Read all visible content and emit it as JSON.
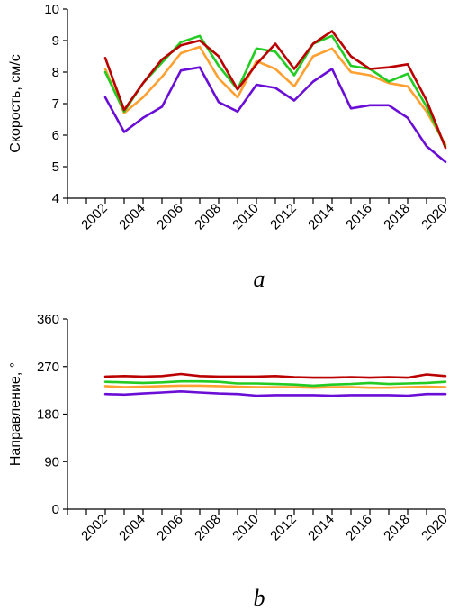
{
  "chart_data": [
    {
      "type": "line",
      "panel_label": "a",
      "ylabel": "Скорость, см/с",
      "ylim": [
        4,
        10
      ],
      "yticks": [
        "4",
        "5",
        "6",
        "7",
        "8",
        "9",
        "10"
      ],
      "xlim": [
        2000,
        2020
      ],
      "xticks": [
        "2002",
        "2004",
        "2006",
        "2008",
        "2010",
        "2012",
        "2014",
        "2016",
        "2018",
        "2020"
      ],
      "x": [
        2002,
        2003,
        2004,
        2005,
        2006,
        2007,
        2008,
        2009,
        2010,
        2011,
        2012,
        2013,
        2014,
        2015,
        2016,
        2017,
        2018,
        2019,
        2020
      ],
      "series": [
        {
          "color": "#6a0dd6",
          "values": [
            7.2,
            6.1,
            6.55,
            6.9,
            8.05,
            8.15,
            7.05,
            6.75,
            7.6,
            7.5,
            7.1,
            7.7,
            8.1,
            6.85,
            6.95,
            6.95,
            6.55,
            5.65,
            5.15
          ]
        },
        {
          "color": "#ffa030",
          "values": [
            8.1,
            6.7,
            7.2,
            7.85,
            8.6,
            8.8,
            7.8,
            7.2,
            8.35,
            8.1,
            7.55,
            8.5,
            8.75,
            8.0,
            7.9,
            7.65,
            7.55,
            6.75,
            5.7
          ]
        },
        {
          "color": "#22cc22",
          "values": [
            8.0,
            6.75,
            7.65,
            8.3,
            8.95,
            9.15,
            8.2,
            7.45,
            8.75,
            8.65,
            7.9,
            8.9,
            9.15,
            8.2,
            8.1,
            7.7,
            7.95,
            6.9,
            5.65
          ]
        },
        {
          "color": "#bb0000",
          "values": [
            8.45,
            6.8,
            7.65,
            8.4,
            8.85,
            9.0,
            8.5,
            7.45,
            8.25,
            8.9,
            8.1,
            8.9,
            9.3,
            8.5,
            8.1,
            8.15,
            8.25,
            7.1,
            5.6
          ]
        }
      ]
    },
    {
      "type": "line",
      "panel_label": "b",
      "ylabel": "Направление, °",
      "ylim": [
        0,
        360
      ],
      "yticks": [
        "0",
        "90",
        "180",
        "270",
        "360"
      ],
      "xlim": [
        2000,
        2020
      ],
      "xticks": [
        "2002",
        "2004",
        "2006",
        "2008",
        "2010",
        "2012",
        "2014",
        "2016",
        "2018",
        "2020"
      ],
      "x": [
        2002,
        2003,
        2004,
        2005,
        2006,
        2007,
        2008,
        2009,
        2010,
        2011,
        2012,
        2013,
        2014,
        2015,
        2016,
        2017,
        2018,
        2019,
        2020
      ],
      "series": [
        {
          "color": "#6a0dd6",
          "values": [
            218,
            217,
            219,
            221,
            223,
            221,
            219,
            218,
            215,
            216,
            216,
            216,
            215,
            216,
            216,
            216,
            215,
            218,
            218
          ]
        },
        {
          "color": "#ffa030",
          "values": [
            233,
            231,
            232,
            233,
            234,
            234,
            233,
            232,
            231,
            231,
            231,
            230,
            231,
            231,
            230,
            230,
            231,
            232,
            231
          ]
        },
        {
          "color": "#22cc22",
          "values": [
            241,
            240,
            239,
            240,
            242,
            242,
            241,
            238,
            238,
            237,
            236,
            234,
            236,
            237,
            239,
            237,
            238,
            239,
            241
          ]
        },
        {
          "color": "#bb0000",
          "values": [
            251,
            252,
            251,
            252,
            256,
            252,
            251,
            251,
            251,
            252,
            250,
            249,
            249,
            250,
            249,
            250,
            249,
            255,
            252
          ]
        }
      ]
    }
  ]
}
